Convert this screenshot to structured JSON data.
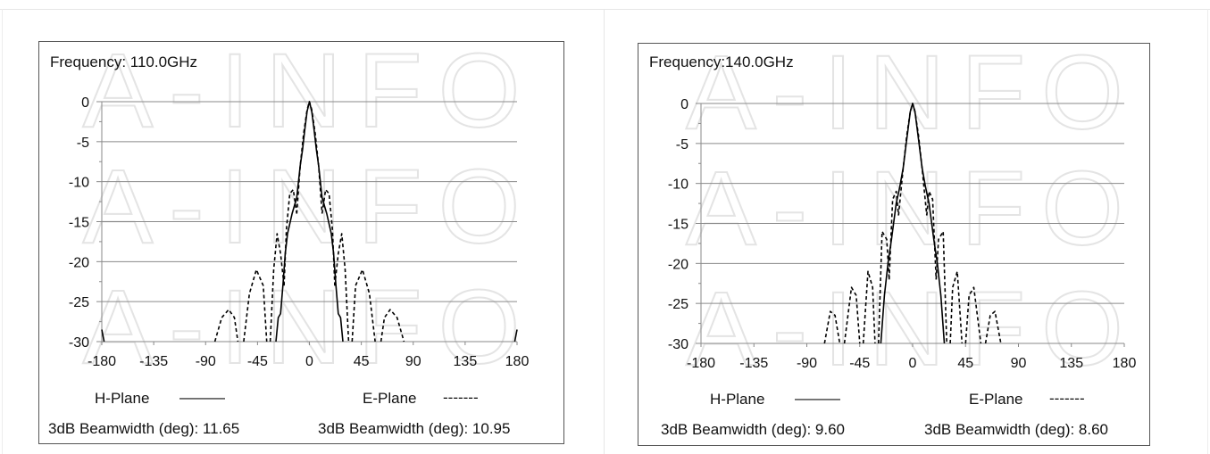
{
  "watermark": "A-INFO",
  "colors": {
    "axis": "#888888",
    "grid": "#8a8a8a",
    "series": "#000000",
    "watermark": "#e4e4e4"
  },
  "chart_data": [
    {
      "type": "line",
      "title": "Frequency: 110.0GHz",
      "xlabel": "",
      "ylabel": "",
      "xlim": [
        -180,
        180
      ],
      "ylim": [
        -30,
        0
      ],
      "x_ticks": [
        -180,
        -135,
        -90,
        -45,
        0,
        45,
        90,
        135,
        180
      ],
      "y_ticks": [
        0,
        -5,
        -10,
        -15,
        -20,
        -25,
        -30
      ],
      "grid": true,
      "series": [
        {
          "name": "H-Plane",
          "style": "solid",
          "segments": [
            [
              [
                -180,
                -28.5
              ],
              [
                -178,
                -30
              ]
            ],
            [
              [
                178,
                -30
              ],
              [
                180,
                -28.5
              ]
            ],
            [
              [
                -29,
                -30
              ],
              [
                -27,
                -27
              ],
              [
                -25,
                -26.5
              ],
              [
                -23,
                -23
              ],
              [
                -21,
                -19
              ],
              [
                -19,
                -16.5
              ],
              [
                -15,
                -14
              ],
              [
                -11,
                -12
              ],
              [
                -8,
                -8
              ],
              [
                -6,
                -6
              ],
              [
                -4,
                -3.5
              ],
              [
                -2,
                -1.2
              ],
              [
                0,
                0
              ],
              [
                2,
                -1.2
              ],
              [
                4,
                -3.5
              ],
              [
                6,
                -6
              ],
              [
                8,
                -8
              ],
              [
                11,
                -12
              ],
              [
                15,
                -14
              ],
              [
                19,
                -16.5
              ],
              [
                21,
                -19
              ],
              [
                23,
                -23
              ],
              [
                25,
                -26.5
              ],
              [
                27,
                -27
              ],
              [
                29,
                -30
              ]
            ]
          ]
        },
        {
          "name": "E-Plane",
          "style": "dashed",
          "segments": [
            [
              [
                -82,
                -30
              ],
              [
                -76,
                -27
              ],
              [
                -70,
                -26
              ],
              [
                -65,
                -27
              ],
              [
                -62,
                -30
              ]
            ],
            [
              [
                -57,
                -30
              ],
              [
                -52,
                -24
              ],
              [
                -46,
                -21
              ],
              [
                -40,
                -23
              ],
              [
                -37,
                -30
              ]
            ],
            [
              [
                -34,
                -30
              ],
              [
                -31,
                -21
              ],
              [
                -28,
                -16.5
              ],
              [
                -25,
                -19
              ],
              [
                -22,
                -23
              ]
            ],
            [
              [
                -22,
                -23
              ],
              [
                -20,
                -16
              ],
              [
                -17,
                -11.5
              ],
              [
                -14,
                -11
              ],
              [
                -11,
                -14
              ]
            ],
            [
              [
                -11,
                -14
              ],
              [
                -8,
                -8
              ],
              [
                -5,
                -4
              ],
              [
                -2,
                -1
              ],
              [
                0,
                0
              ],
              [
                2,
                -1
              ],
              [
                5,
                -4
              ],
              [
                8,
                -8
              ],
              [
                11,
                -14
              ]
            ],
            [
              [
                11,
                -14
              ],
              [
                14,
                -11
              ],
              [
                17,
                -11.5
              ],
              [
                20,
                -16
              ],
              [
                22,
                -23
              ]
            ],
            [
              [
                22,
                -23
              ],
              [
                25,
                -19
              ],
              [
                28,
                -16.5
              ],
              [
                31,
                -21
              ],
              [
                34,
                -30
              ]
            ],
            [
              [
                37,
                -30
              ],
              [
                40,
                -23
              ],
              [
                46,
                -21
              ],
              [
                52,
                -24
              ],
              [
                57,
                -30
              ]
            ],
            [
              [
                62,
                -30
              ],
              [
                65,
                -27
              ],
              [
                70,
                -26
              ],
              [
                76,
                -27
              ],
              [
                82,
                -30
              ]
            ]
          ]
        }
      ],
      "legend": {
        "h_label": "H-Plane",
        "h_line": "———",
        "e_label": "E-Plane",
        "e_line": "-------"
      },
      "beamwidth_h": "3dB Beamwidth (deg): 11.65",
      "beamwidth_e": "3dB Beamwidth (deg): 10.95"
    },
    {
      "type": "line",
      "title": "Frequency:140.0GHz",
      "xlabel": "",
      "ylabel": "",
      "xlim": [
        -180,
        180
      ],
      "ylim": [
        -30,
        0
      ],
      "x_ticks": [
        -180,
        -135,
        -90,
        -45,
        0,
        45,
        90,
        135,
        180
      ],
      "y_ticks": [
        0,
        -5,
        -10,
        -15,
        -20,
        -25,
        -30
      ],
      "grid": true,
      "series": [
        {
          "name": "H-Plane",
          "style": "solid",
          "segments": [
            [
              [
                -27,
                -30
              ],
              [
                -24,
                -24
              ],
              [
                -21,
                -20
              ],
              [
                -18,
                -17
              ],
              [
                -14,
                -12.5
              ],
              [
                -11,
                -10.5
              ],
              [
                -8,
                -8
              ],
              [
                -5,
                -4.5
              ],
              [
                -2,
                -1
              ],
              [
                0,
                0
              ],
              [
                2,
                -1
              ],
              [
                5,
                -4.5
              ],
              [
                8,
                -8
              ],
              [
                11,
                -10.5
              ],
              [
                14,
                -12.5
              ],
              [
                18,
                -17
              ],
              [
                21,
                -20
              ],
              [
                24,
                -24
              ],
              [
                27,
                -30
              ]
            ]
          ]
        },
        {
          "name": "E-Plane",
          "style": "dashed",
          "segments": [
            [
              [
                -75,
                -30
              ],
              [
                -70,
                -26
              ],
              [
                -66,
                -26.5
              ],
              [
                -62,
                -30
              ]
            ],
            [
              [
                -58,
                -30
              ],
              [
                -52,
                -23
              ],
              [
                -48,
                -24
              ],
              [
                -45,
                -30
              ]
            ],
            [
              [
                -42,
                -30
              ],
              [
                -38,
                -21
              ],
              [
                -34,
                -23
              ],
              [
                -32,
                -30
              ]
            ],
            [
              [
                -29,
                -30
              ],
              [
                -26,
                -16
              ],
              [
                -22,
                -17
              ],
              [
                -20,
                -22
              ]
            ],
            [
              [
                -20,
                -22
              ],
              [
                -17,
                -12
              ],
              [
                -14,
                -11
              ],
              [
                -12,
                -14
              ]
            ],
            [
              [
                -12,
                -14
              ],
              [
                -8,
                -8
              ],
              [
                -5,
                -4
              ],
              [
                -2,
                -1
              ],
              [
                0,
                0
              ],
              [
                2,
                -1
              ],
              [
                5,
                -4
              ],
              [
                8,
                -8
              ],
              [
                12,
                -14
              ]
            ],
            [
              [
                12,
                -14
              ],
              [
                14,
                -11
              ],
              [
                17,
                -12
              ],
              [
                20,
                -22
              ]
            ],
            [
              [
                20,
                -22
              ],
              [
                22,
                -17
              ],
              [
                26,
                -16
              ],
              [
                29,
                -30
              ]
            ],
            [
              [
                32,
                -30
              ],
              [
                34,
                -23
              ],
              [
                38,
                -21
              ],
              [
                42,
                -30
              ]
            ],
            [
              [
                45,
                -30
              ],
              [
                48,
                -24
              ],
              [
                52,
                -23
              ],
              [
                58,
                -30
              ]
            ],
            [
              [
                62,
                -30
              ],
              [
                66,
                -26.5
              ],
              [
                70,
                -26
              ],
              [
                75,
                -30
              ]
            ]
          ]
        }
      ],
      "legend": {
        "h_label": "H-Plane",
        "h_line": "———",
        "e_label": "E-Plane",
        "e_line": "-------"
      },
      "beamwidth_h": "3dB Beamwidth (deg): 9.60",
      "beamwidth_e": "3dB Beamwidth (deg): 8.60"
    }
  ]
}
